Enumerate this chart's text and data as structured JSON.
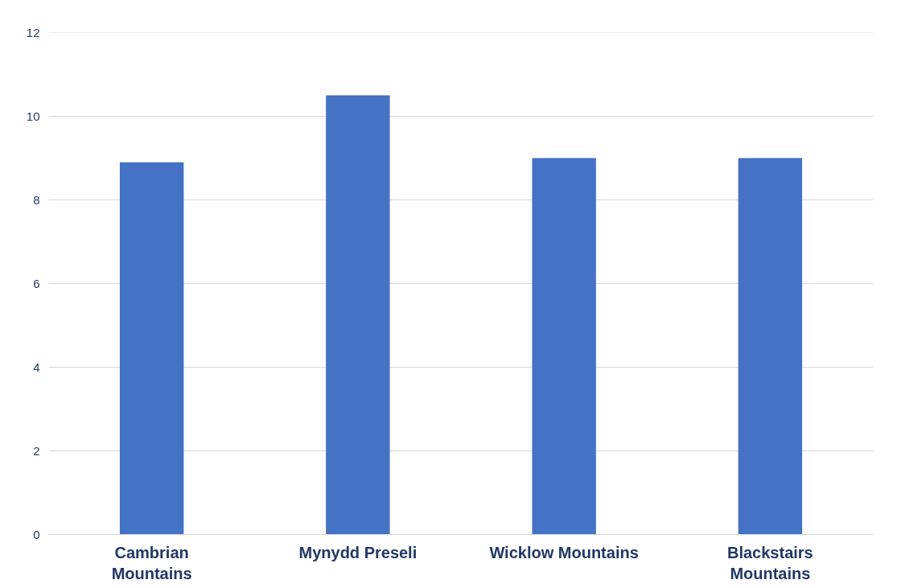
{
  "chart_data": {
    "type": "bar",
    "categories": [
      "Cambrian Mountains",
      "Mynydd Preseli",
      "Wicklow Mountains",
      "Blackstairs Mountains"
    ],
    "values": [
      8.9,
      10.5,
      9.0,
      9.0
    ],
    "color": "#4472c4",
    "ylim": [
      0,
      12
    ],
    "yticks": [
      0,
      2,
      4,
      6,
      8,
      10,
      12
    ],
    "grid": "y"
  }
}
